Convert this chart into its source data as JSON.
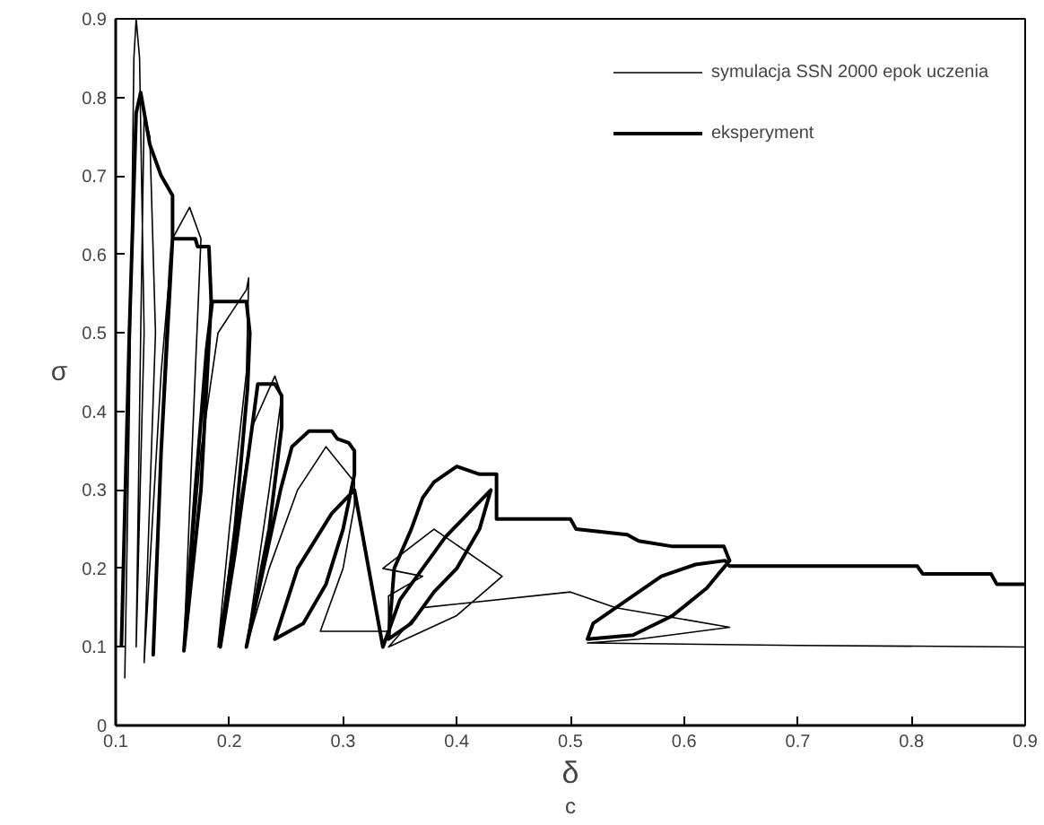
{
  "chart_data": {
    "type": "line",
    "xlabel": "δ$_{c}$",
    "ylabel": "σ",
    "xlim": [
      0.1,
      0.9
    ],
    "ylim": [
      0,
      0.9
    ],
    "xticks": [
      0.1,
      0.2,
      0.3,
      0.4,
      0.5,
      0.6,
      0.7,
      0.8,
      0.9
    ],
    "yticks": [
      0,
      0.1,
      0.2,
      0.3,
      0.4,
      0.5,
      0.6,
      0.7,
      0.8,
      0.9
    ],
    "grid": false,
    "legend": "top right",
    "marker": "none",
    "line_style": "solid",
    "series": [
      {
        "name": "symulacja SSN 2000 epok uczenia",
        "color": "#000000",
        "x": [
          0.108,
          0.112,
          0.116,
          0.118,
          0.121,
          0.125,
          0.118,
          0.122,
          0.125,
          0.13,
          0.135,
          0.125,
          0.14,
          0.15,
          0.165,
          0.175,
          0.17,
          0.16,
          0.175,
          0.19,
          0.215,
          0.217,
          0.215,
          0.2,
          0.19,
          0.2,
          0.22,
          0.24,
          0.246,
          0.235,
          0.215,
          0.235,
          0.26,
          0.285,
          0.31,
          0.31,
          0.3,
          0.28,
          0.34,
          0.34,
          0.37,
          0.335,
          0.38,
          0.44,
          0.4,
          0.34,
          0.37,
          0.5,
          0.54,
          0.64,
          0.56,
          0.515,
          0.7,
          0.9
        ],
        "values": [
          0.06,
          0.4,
          0.85,
          0.9,
          0.85,
          0.5,
          0.1,
          0.5,
          0.78,
          0.75,
          0.5,
          0.08,
          0.45,
          0.62,
          0.66,
          0.62,
          0.45,
          0.1,
          0.35,
          0.5,
          0.555,
          0.57,
          0.45,
          0.25,
          0.1,
          0.2,
          0.38,
          0.445,
          0.42,
          0.3,
          0.1,
          0.2,
          0.3,
          0.355,
          0.31,
          0.28,
          0.2,
          0.12,
          0.12,
          0.165,
          0.19,
          0.2,
          0.25,
          0.19,
          0.14,
          0.1,
          0.15,
          0.17,
          0.15,
          0.125,
          0.11,
          0.105,
          0.102,
          0.1
        ]
      },
      {
        "name": "eksperyment",
        "color": "#000000",
        "x": [
          0.105,
          0.112,
          0.118,
          0.122,
          0.13,
          0.14,
          0.15,
          0.15,
          0.14,
          0.133,
          0.14,
          0.148,
          0.15,
          0.17,
          0.172,
          0.182,
          0.184,
          0.175,
          0.16,
          0.17,
          0.18,
          0.185,
          0.215,
          0.218,
          0.216,
          0.205,
          0.192,
          0.205,
          0.22,
          0.225,
          0.24,
          0.246,
          0.246,
          0.235,
          0.215,
          0.23,
          0.245,
          0.255,
          0.27,
          0.29,
          0.295,
          0.305,
          0.31,
          0.31,
          0.3,
          0.285,
          0.265,
          0.24,
          0.26,
          0.29,
          0.31,
          0.335,
          0.35,
          0.37,
          0.39,
          0.41,
          0.43,
          0.42,
          0.4,
          0.38,
          0.36,
          0.34,
          0.345,
          0.36,
          0.37,
          0.38,
          0.4,
          0.42,
          0.435,
          0.435,
          0.5,
          0.505,
          0.55,
          0.56,
          0.59,
          0.635,
          0.64,
          0.62,
          0.59,
          0.555,
          0.515,
          0.52,
          0.55,
          0.58,
          0.61,
          0.636,
          0.64,
          0.805,
          0.81,
          0.87,
          0.875,
          0.9
        ],
        "values": [
          0.1,
          0.5,
          0.78,
          0.806,
          0.74,
          0.7,
          0.675,
          0.62,
          0.35,
          0.09,
          0.35,
          0.58,
          0.62,
          0.62,
          0.61,
          0.61,
          0.54,
          0.3,
          0.095,
          0.3,
          0.48,
          0.54,
          0.54,
          0.5,
          0.43,
          0.25,
          0.1,
          0.22,
          0.38,
          0.435,
          0.435,
          0.42,
          0.38,
          0.25,
          0.1,
          0.2,
          0.3,
          0.355,
          0.375,
          0.375,
          0.365,
          0.36,
          0.35,
          0.32,
          0.25,
          0.18,
          0.13,
          0.11,
          0.2,
          0.27,
          0.3,
          0.1,
          0.16,
          0.2,
          0.24,
          0.27,
          0.3,
          0.25,
          0.2,
          0.17,
          0.13,
          0.11,
          0.2,
          0.25,
          0.29,
          0.31,
          0.33,
          0.32,
          0.32,
          0.263,
          0.263,
          0.25,
          0.243,
          0.235,
          0.228,
          0.228,
          0.21,
          0.175,
          0.14,
          0.115,
          0.11,
          0.13,
          0.16,
          0.19,
          0.205,
          0.21,
          0.203,
          0.203,
          0.193,
          0.193,
          0.18,
          0.18
        ]
      }
    ]
  }
}
